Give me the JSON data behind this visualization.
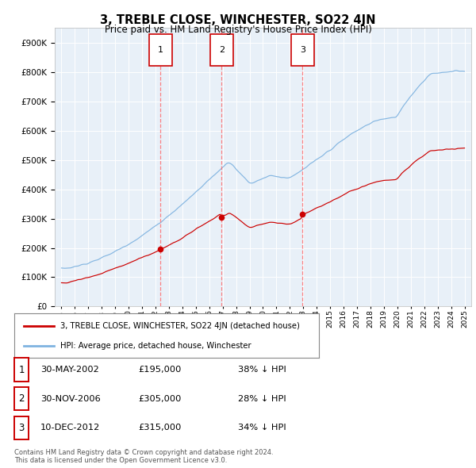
{
  "title": "3, TREBLE CLOSE, WINCHESTER, SO22 4JN",
  "subtitle": "Price paid vs. HM Land Registry's House Price Index (HPI)",
  "footer": "Contains HM Land Registry data © Crown copyright and database right 2024.\nThis data is licensed under the Open Government Licence v3.0.",
  "legend_line1": "3, TREBLE CLOSE, WINCHESTER, SO22 4JN (detached house)",
  "legend_line2": "HPI: Average price, detached house, Winchester",
  "transactions": [
    {
      "num": 1,
      "date": "30-MAY-2002",
      "price": "£195,000",
      "pct": "38% ↓ HPI",
      "year": 2002.38,
      "price_val": 195000
    },
    {
      "num": 2,
      "date": "30-NOV-2006",
      "price": "£305,000",
      "pct": "28% ↓ HPI",
      "year": 2006.92,
      "price_val": 305000
    },
    {
      "num": 3,
      "date": "10-DEC-2012",
      "price": "£315,000",
      "pct": "34% ↓ HPI",
      "year": 2012.94,
      "price_val": 315000
    }
  ],
  "hpi_color": "#7fb3e0",
  "price_color": "#cc0000",
  "plot_bg": "#e8f0f8",
  "ylim_max": 950000,
  "xlim_left": 1994.5,
  "xlim_right": 2025.5
}
